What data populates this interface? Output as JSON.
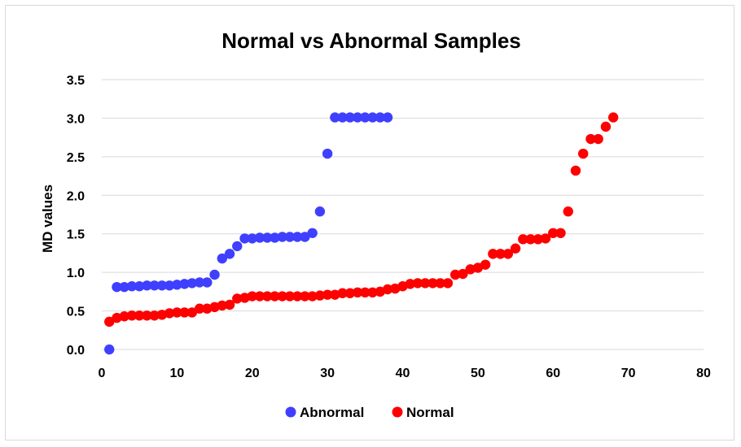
{
  "chart_data": {
    "type": "scatter",
    "title": "Normal vs Abnormal Samples",
    "xlabel": "",
    "ylabel": "MD values",
    "xlim": [
      0,
      80
    ],
    "ylim": [
      0,
      3.5
    ],
    "x_ticks": [
      "0",
      "10",
      "20",
      "30",
      "40",
      "50",
      "60",
      "70",
      "80"
    ],
    "y_ticks": [
      "0.0",
      "0.5",
      "1.0",
      "1.5",
      "2.0",
      "2.5",
      "3.0",
      "3.5"
    ],
    "grid": "horizontal",
    "legend_position": "bottom",
    "series": [
      {
        "name": "Abnormal",
        "color": "#3f3fff",
        "points": [
          [
            1,
            0.0
          ],
          [
            2,
            0.81
          ],
          [
            3,
            0.81
          ],
          [
            4,
            0.82
          ],
          [
            5,
            0.82
          ],
          [
            6,
            0.83
          ],
          [
            7,
            0.83
          ],
          [
            8,
            0.83
          ],
          [
            9,
            0.83
          ],
          [
            10,
            0.84
          ],
          [
            11,
            0.85
          ],
          [
            12,
            0.86
          ],
          [
            13,
            0.87
          ],
          [
            14,
            0.87
          ],
          [
            15,
            0.97
          ],
          [
            16,
            1.18
          ],
          [
            17,
            1.24
          ],
          [
            18,
            1.34
          ],
          [
            19,
            1.44
          ],
          [
            20,
            1.44
          ],
          [
            21,
            1.45
          ],
          [
            22,
            1.45
          ],
          [
            23,
            1.45
          ],
          [
            24,
            1.46
          ],
          [
            25,
            1.46
          ],
          [
            26,
            1.46
          ],
          [
            27,
            1.46
          ],
          [
            28,
            1.51
          ],
          [
            29,
            1.79
          ],
          [
            30,
            2.54
          ],
          [
            31,
            3.01
          ],
          [
            32,
            3.01
          ],
          [
            33,
            3.01
          ],
          [
            34,
            3.01
          ],
          [
            35,
            3.01
          ],
          [
            36,
            3.01
          ],
          [
            37,
            3.01
          ],
          [
            38,
            3.01
          ]
        ]
      },
      {
        "name": "Normal",
        "color": "#ff0000",
        "points": [
          [
            1,
            0.36
          ],
          [
            2,
            0.41
          ],
          [
            3,
            0.43
          ],
          [
            4,
            0.44
          ],
          [
            5,
            0.44
          ],
          [
            6,
            0.44
          ],
          [
            7,
            0.44
          ],
          [
            8,
            0.45
          ],
          [
            9,
            0.47
          ],
          [
            10,
            0.48
          ],
          [
            11,
            0.48
          ],
          [
            12,
            0.48
          ],
          [
            13,
            0.53
          ],
          [
            14,
            0.53
          ],
          [
            15,
            0.55
          ],
          [
            16,
            0.57
          ],
          [
            17,
            0.58
          ],
          [
            18,
            0.66
          ],
          [
            19,
            0.67
          ],
          [
            20,
            0.69
          ],
          [
            21,
            0.69
          ],
          [
            22,
            0.69
          ],
          [
            23,
            0.69
          ],
          [
            24,
            0.69
          ],
          [
            25,
            0.69
          ],
          [
            26,
            0.69
          ],
          [
            27,
            0.69
          ],
          [
            28,
            0.69
          ],
          [
            29,
            0.7
          ],
          [
            30,
            0.71
          ],
          [
            31,
            0.71
          ],
          [
            32,
            0.73
          ],
          [
            33,
            0.73
          ],
          [
            34,
            0.74
          ],
          [
            35,
            0.74
          ],
          [
            36,
            0.74
          ],
          [
            37,
            0.75
          ],
          [
            38,
            0.78
          ],
          [
            39,
            0.79
          ],
          [
            40,
            0.82
          ],
          [
            41,
            0.85
          ],
          [
            42,
            0.86
          ],
          [
            43,
            0.86
          ],
          [
            44,
            0.86
          ],
          [
            45,
            0.86
          ],
          [
            46,
            0.86
          ],
          [
            47,
            0.97
          ],
          [
            48,
            0.98
          ],
          [
            49,
            1.04
          ],
          [
            50,
            1.06
          ],
          [
            51,
            1.1
          ],
          [
            52,
            1.24
          ],
          [
            53,
            1.24
          ],
          [
            54,
            1.24
          ],
          [
            55,
            1.31
          ],
          [
            56,
            1.43
          ],
          [
            57,
            1.43
          ],
          [
            58,
            1.43
          ],
          [
            59,
            1.44
          ],
          [
            60,
            1.51
          ],
          [
            61,
            1.51
          ],
          [
            62,
            1.79
          ],
          [
            63,
            2.32
          ],
          [
            64,
            2.54
          ],
          [
            65,
            2.73
          ],
          [
            66,
            2.73
          ],
          [
            67,
            2.89
          ],
          [
            68,
            3.01
          ]
        ]
      }
    ]
  }
}
